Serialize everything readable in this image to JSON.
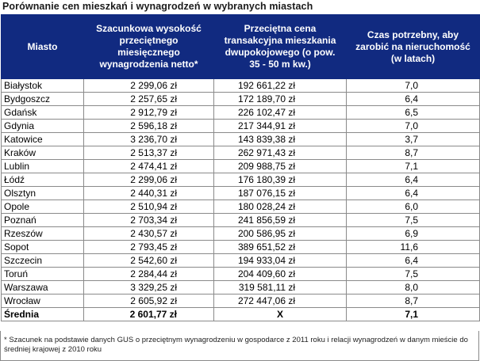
{
  "title": "Porównanie cen mieszkań i wynagrodzeń w wybranych miastach",
  "headers": {
    "city": "Miasto",
    "salary": "Szacunkowa wysokość przeciętnego miesięcznego wynagrodzenia netto*",
    "price": "Przeciętna cena transakcyjna mieszkania dwupokojowego (o pow. 35 - 50 m kw.)",
    "years": "Czas potrzebny, aby zarobić na nieruchomość (w latach)"
  },
  "rows": [
    {
      "city": "Białystok",
      "salary": "2 299,06 zł",
      "price": "192 661,22 zł",
      "years": "7,0"
    },
    {
      "city": "Bydgoszcz",
      "salary": "2 257,65 zł",
      "price": "172 189,70 zł",
      "years": "6,4"
    },
    {
      "city": "Gdańsk",
      "salary": "2 912,79 zł",
      "price": "226 102,47 zł",
      "years": "6,5"
    },
    {
      "city": "Gdynia",
      "salary": "2 596,18 zł",
      "price": "217 344,91 zł",
      "years": "7,0"
    },
    {
      "city": "Katowice",
      "salary": "3 236,70 zł",
      "price": "143 839,38 zł",
      "years": "3,7"
    },
    {
      "city": "Kraków",
      "salary": "2 513,37 zł",
      "price": "262 971,43 zł",
      "years": "8,7"
    },
    {
      "city": "Lublin",
      "salary": "2 474,41 zł",
      "price": "209 988,75 zł",
      "years": "7,1"
    },
    {
      "city": "Łódź",
      "salary": "2 299,06 zł",
      "price": "176 180,39 zł",
      "years": "6,4"
    },
    {
      "city": "Olsztyn",
      "salary": "2 440,31 zł",
      "price": "187 076,15 zł",
      "years": "6,4"
    },
    {
      "city": "Opole",
      "salary": "2 510,94 zł",
      "price": "180 028,24 zł",
      "years": "6,0"
    },
    {
      "city": "Poznań",
      "salary": "2 703,34 zł",
      "price": "241 856,59 zł",
      "years": "7,5"
    },
    {
      "city": "Rzeszów",
      "salary": "2 430,57 zł",
      "price": "200 586,95 zł",
      "years": "6,9"
    },
    {
      "city": "Sopot",
      "salary": "2 793,45 zł",
      "price": "389 651,52 zł",
      "years": "11,6"
    },
    {
      "city": "Szczecin",
      "salary": "2 542,60 zł",
      "price": "194 933,04 zł",
      "years": "6,4"
    },
    {
      "city": "Toruń",
      "salary": "2 284,44 zł",
      "price": "204 409,60 zł",
      "years": "7,5"
    },
    {
      "city": "Warszawa",
      "salary": "3 329,25 zł",
      "price": "319 581,11 zł",
      "years": "8,0"
    },
    {
      "city": "Wrocław",
      "salary": "2 605,92 zł",
      "price": "272 447,06 zł",
      "years": "8,7"
    }
  ],
  "summary": {
    "city": "Średnia",
    "salary": "2 601,77 zł",
    "price": "X",
    "years": "7,1"
  },
  "footnote": "* Szacunek na podstawie danych GUS o przeciętnym wynagrodzeniu w gospodarce z 2011 roku i relacji wynagrodzeń w danym mieście do średniej krajowej z 2010 roku",
  "colors": {
    "header_bg": "#112a80",
    "header_text": "#ffffff",
    "border": "#8a8a8a"
  }
}
